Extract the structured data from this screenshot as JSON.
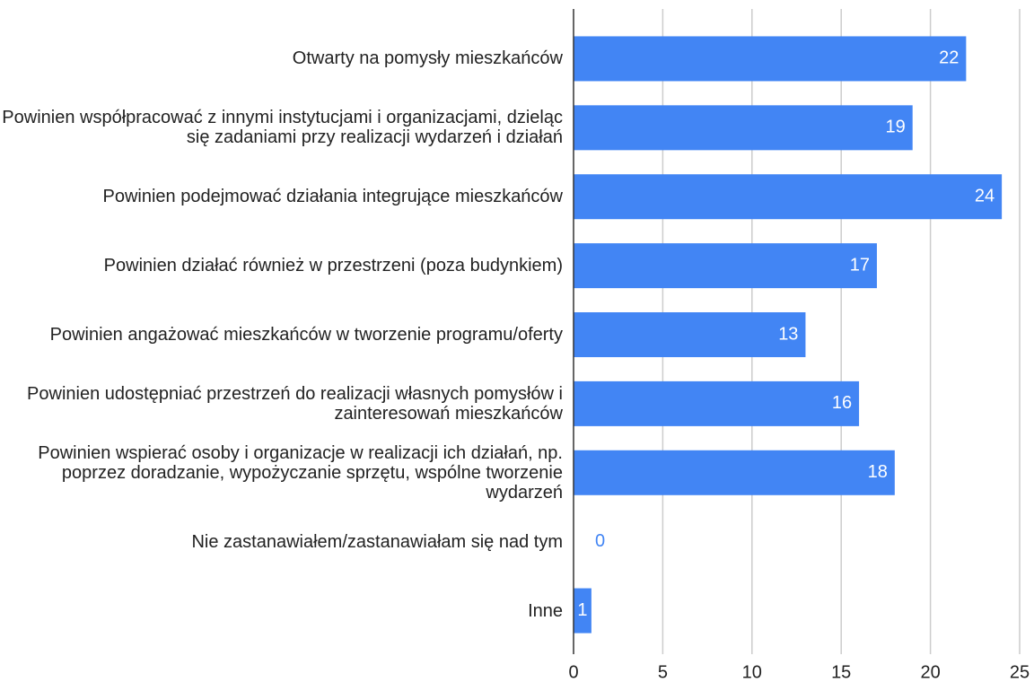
{
  "chart_data": {
    "type": "bar",
    "orientation": "horizontal",
    "categories": [
      "Otwarty na pomysły mieszkańców",
      "Powinien współpracować z innymi instytucjami i organizacjami, dzieląc się zadaniami przy realizacji wydarzeń i działań",
      "Powinien podejmować działania integrujące mieszkańców",
      "Powinien działać również w przestrzeni (poza budynkiem)",
      "Powinien angażować mieszkańców w tworzenie programu/oferty",
      "Powinien udostępniać przestrzeń do realizacji własnych pomysłów i zainteresowań mieszkańców",
      "Powinien wspierać osoby i organizacje w realizacji ich działań, np. poprzez doradzanie, wypożyczanie sprzętu, wspólne tworzenie wydarzeń",
      "Nie zastanawiałem/zastanawiałam się nad tym",
      "Inne"
    ],
    "values": [
      22,
      19,
      24,
      17,
      13,
      16,
      18,
      0,
      1
    ],
    "color": "#4285f4",
    "xlim": [
      0,
      25
    ],
    "xticks": [
      0,
      5,
      10,
      15,
      20,
      25
    ],
    "grid": true
  }
}
